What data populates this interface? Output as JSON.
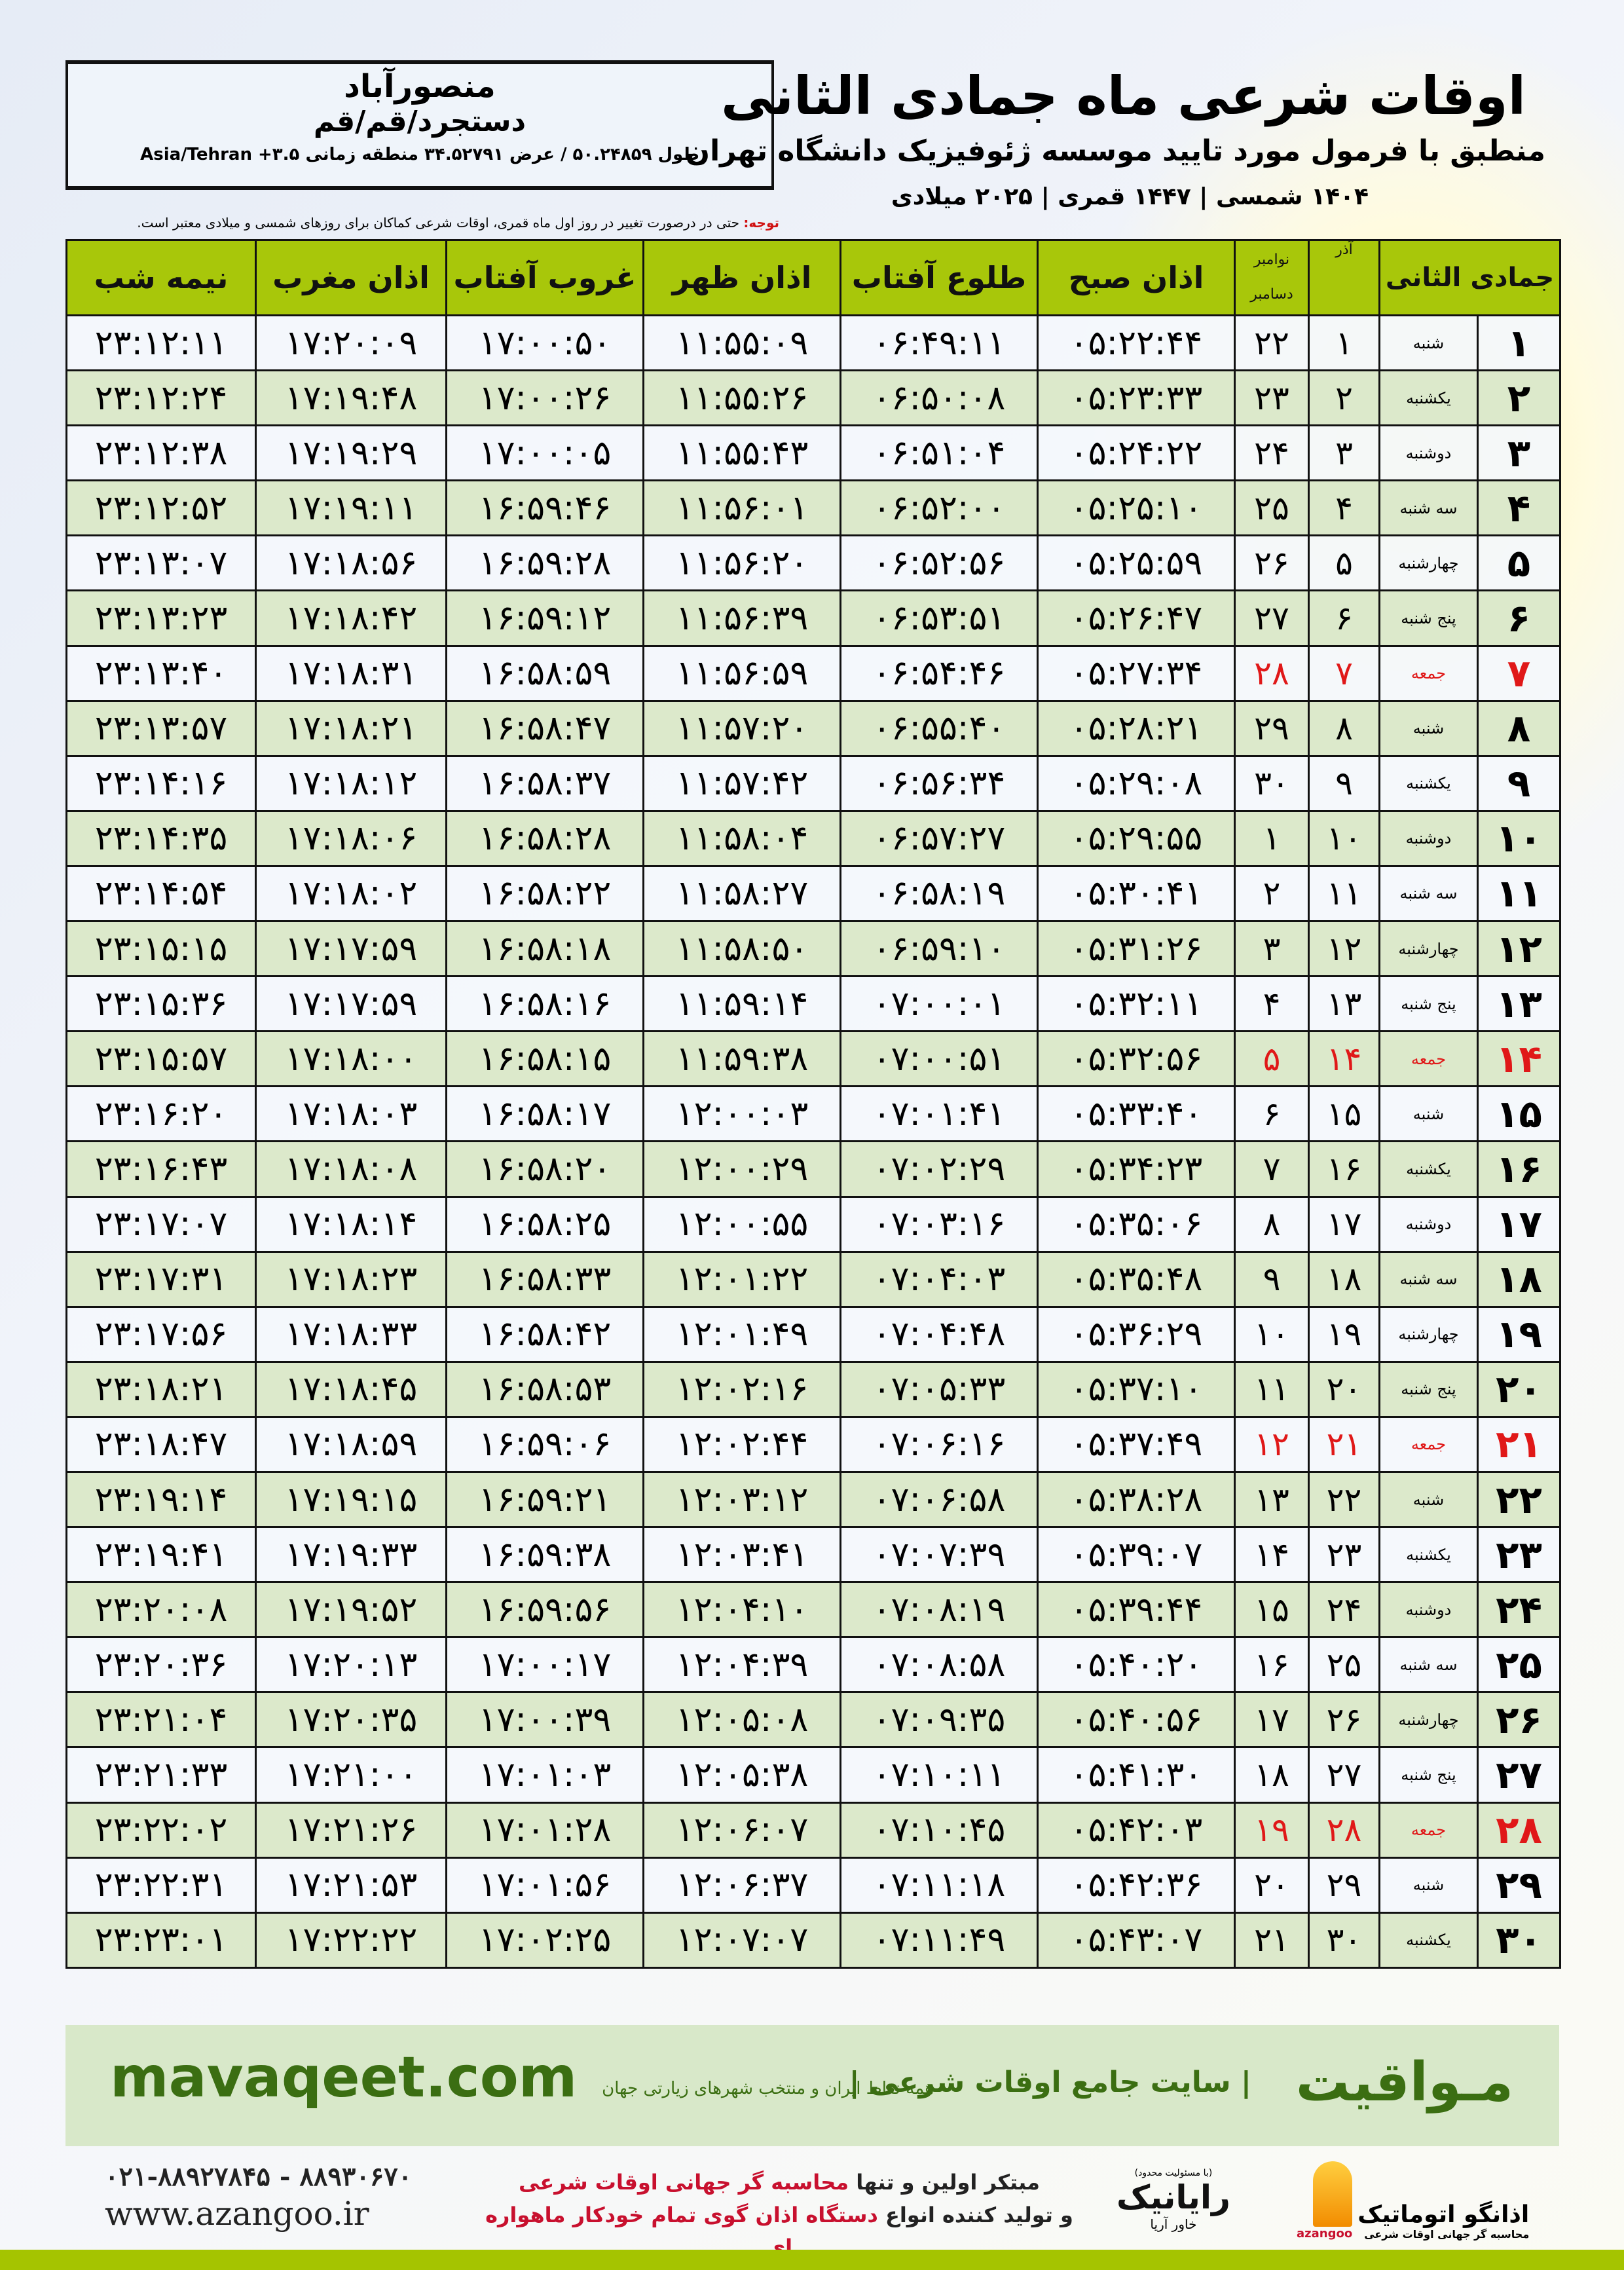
{
  "location": {
    "city": "منصورآباد",
    "province": "دستجرد/قم/قم",
    "coords": "طول ۵۰.۲۴۸۵۹ / عرض ۳۴.۵۲۷۹۱ منطقه زمانی ۳.۵+ Asia/Tehran"
  },
  "header": {
    "title": "اوقات شرعی ماه جمادی الثانی",
    "subtitle": "منطبق با فرمول مورد تایید موسسه ژئوفیزیک دانشگاه تهران",
    "years": "۱۴۰۴ شمسی | ۱۴۴۷ قمری | ۲۰۲۵ میلادی"
  },
  "note": {
    "label": "توجه:",
    "text": " حتی در درصورت تغییر در روز اول ماه قمری، اوقات شرعی کماکان برای روزهای شمسی و میلادی معتبر است."
  },
  "table": {
    "headers": {
      "hijri": "جمادی الثانی",
      "azar": "آذر",
      "greg1": "نوامبر",
      "greg2": "دسامبر",
      "fajr": "اذان صبح",
      "sunrise": "طلوع آفتاب",
      "dhuhr": "اذان ظهر",
      "sunset": "غروب آفتاب",
      "maghrib": "اذان مغرب",
      "midnight": "نیمه شب"
    },
    "holiday_color": "#e01818",
    "header_color": "#a8c70a",
    "alt_row_color": "#dce9cb",
    "rows": [
      {
        "n": "۱",
        "wd": "شنبه",
        "azar": "۱",
        "greg": "۲۲",
        "t": [
          "۰۵:۲۲:۴۴",
          "۰۶:۴۹:۱۱",
          "۱۱:۵۵:۰۹",
          "۱۷:۰۰:۵۰",
          "۱۷:۲۰:۰۹",
          "۲۳:۱۲:۱۱"
        ]
      },
      {
        "n": "۲",
        "wd": "یکشنبه",
        "azar": "۲",
        "greg": "۲۳",
        "t": [
          "۰۵:۲۳:۳۳",
          "۰۶:۵۰:۰۸",
          "۱۱:۵۵:۲۶",
          "۱۷:۰۰:۲۶",
          "۱۷:۱۹:۴۸",
          "۲۳:۱۲:۲۴"
        ]
      },
      {
        "n": "۳",
        "wd": "دوشنبه",
        "azar": "۳",
        "greg": "۲۴",
        "t": [
          "۰۵:۲۴:۲۲",
          "۰۶:۵۱:۰۴",
          "۱۱:۵۵:۴۳",
          "۱۷:۰۰:۰۵",
          "۱۷:۱۹:۲۹",
          "۲۳:۱۲:۳۸"
        ]
      },
      {
        "n": "۴",
        "wd": "سه شنبه",
        "azar": "۴",
        "greg": "۲۵",
        "t": [
          "۰۵:۲۵:۱۰",
          "۰۶:۵۲:۰۰",
          "۱۱:۵۶:۰۱",
          "۱۶:۵۹:۴۶",
          "۱۷:۱۹:۱۱",
          "۲۳:۱۲:۵۲"
        ]
      },
      {
        "n": "۵",
        "wd": "چهارشنبه",
        "azar": "۵",
        "greg": "۲۶",
        "t": [
          "۰۵:۲۵:۵۹",
          "۰۶:۵۲:۵۶",
          "۱۱:۵۶:۲۰",
          "۱۶:۵۹:۲۸",
          "۱۷:۱۸:۵۶",
          "۲۳:۱۳:۰۷"
        ]
      },
      {
        "n": "۶",
        "wd": "پنج شنبه",
        "azar": "۶",
        "greg": "۲۷",
        "t": [
          "۰۵:۲۶:۴۷",
          "۰۶:۵۳:۵۱",
          "۱۱:۵۶:۳۹",
          "۱۶:۵۹:۱۲",
          "۱۷:۱۸:۴۲",
          "۲۳:۱۳:۲۳"
        ]
      },
      {
        "n": "۷",
        "wd": "جمعه",
        "azar": "۷",
        "greg": "۲۸",
        "holiday": true,
        "t": [
          "۰۵:۲۷:۳۴",
          "۰۶:۵۴:۴۶",
          "۱۱:۵۶:۵۹",
          "۱۶:۵۸:۵۹",
          "۱۷:۱۸:۳۱",
          "۲۳:۱۳:۴۰"
        ]
      },
      {
        "n": "۸",
        "wd": "شنبه",
        "azar": "۸",
        "greg": "۲۹",
        "t": [
          "۰۵:۲۸:۲۱",
          "۰۶:۵۵:۴۰",
          "۱۱:۵۷:۲۰",
          "۱۶:۵۸:۴۷",
          "۱۷:۱۸:۲۱",
          "۲۳:۱۳:۵۷"
        ]
      },
      {
        "n": "۹",
        "wd": "یکشنبه",
        "azar": "۹",
        "greg": "۳۰",
        "t": [
          "۰۵:۲۹:۰۸",
          "۰۶:۵۶:۳۴",
          "۱۱:۵۷:۴۲",
          "۱۶:۵۸:۳۷",
          "۱۷:۱۸:۱۲",
          "۲۳:۱۴:۱۶"
        ]
      },
      {
        "n": "۱۰",
        "wd": "دوشنبه",
        "azar": "۱۰",
        "greg": "۱",
        "t": [
          "۰۵:۲۹:۵۵",
          "۰۶:۵۷:۲۷",
          "۱۱:۵۸:۰۴",
          "۱۶:۵۸:۲۸",
          "۱۷:۱۸:۰۶",
          "۲۳:۱۴:۳۵"
        ]
      },
      {
        "n": "۱۱",
        "wd": "سه شنبه",
        "azar": "۱۱",
        "greg": "۲",
        "t": [
          "۰۵:۳۰:۴۱",
          "۰۶:۵۸:۱۹",
          "۱۱:۵۸:۲۷",
          "۱۶:۵۸:۲۲",
          "۱۷:۱۸:۰۲",
          "۲۳:۱۴:۵۴"
        ]
      },
      {
        "n": "۱۲",
        "wd": "چهارشنبه",
        "azar": "۱۲",
        "greg": "۳",
        "t": [
          "۰۵:۳۱:۲۶",
          "۰۶:۵۹:۱۰",
          "۱۱:۵۸:۵۰",
          "۱۶:۵۸:۱۸",
          "۱۷:۱۷:۵۹",
          "۲۳:۱۵:۱۵"
        ]
      },
      {
        "n": "۱۳",
        "wd": "پنج شنبه",
        "azar": "۱۳",
        "greg": "۴",
        "t": [
          "۰۵:۳۲:۱۱",
          "۰۷:۰۰:۰۱",
          "۱۱:۵۹:۱۴",
          "۱۶:۵۸:۱۶",
          "۱۷:۱۷:۵۹",
          "۲۳:۱۵:۳۶"
        ]
      },
      {
        "n": "۱۴",
        "wd": "جمعه",
        "azar": "۱۴",
        "greg": "۵",
        "holiday": true,
        "t": [
          "۰۵:۳۲:۵۶",
          "۰۷:۰۰:۵۱",
          "۱۱:۵۹:۳۸",
          "۱۶:۵۸:۱۵",
          "۱۷:۱۸:۰۰",
          "۲۳:۱۵:۵۷"
        ]
      },
      {
        "n": "۱۵",
        "wd": "شنبه",
        "azar": "۱۵",
        "greg": "۶",
        "t": [
          "۰۵:۳۳:۴۰",
          "۰۷:۰۱:۴۱",
          "۱۲:۰۰:۰۳",
          "۱۶:۵۸:۱۷",
          "۱۷:۱۸:۰۳",
          "۲۳:۱۶:۲۰"
        ]
      },
      {
        "n": "۱۶",
        "wd": "یکشنبه",
        "azar": "۱۶",
        "greg": "۷",
        "t": [
          "۰۵:۳۴:۲۳",
          "۰۷:۰۲:۲۹",
          "۱۲:۰۰:۲۹",
          "۱۶:۵۸:۲۰",
          "۱۷:۱۸:۰۸",
          "۲۳:۱۶:۴۳"
        ]
      },
      {
        "n": "۱۷",
        "wd": "دوشنبه",
        "azar": "۱۷",
        "greg": "۸",
        "t": [
          "۰۵:۳۵:۰۶",
          "۰۷:۰۳:۱۶",
          "۱۲:۰۰:۵۵",
          "۱۶:۵۸:۲۵",
          "۱۷:۱۸:۱۴",
          "۲۳:۱۷:۰۷"
        ]
      },
      {
        "n": "۱۸",
        "wd": "سه شنبه",
        "azar": "۱۸",
        "greg": "۹",
        "t": [
          "۰۵:۳۵:۴۸",
          "۰۷:۰۴:۰۳",
          "۱۲:۰۱:۲۲",
          "۱۶:۵۸:۳۳",
          "۱۷:۱۸:۲۳",
          "۲۳:۱۷:۳۱"
        ]
      },
      {
        "n": "۱۹",
        "wd": "چهارشنبه",
        "azar": "۱۹",
        "greg": "۱۰",
        "t": [
          "۰۵:۳۶:۲۹",
          "۰۷:۰۴:۴۸",
          "۱۲:۰۱:۴۹",
          "۱۶:۵۸:۴۲",
          "۱۷:۱۸:۳۳",
          "۲۳:۱۷:۵۶"
        ]
      },
      {
        "n": "۲۰",
        "wd": "پنج شنبه",
        "azar": "۲۰",
        "greg": "۱۱",
        "t": [
          "۰۵:۳۷:۱۰",
          "۰۷:۰۵:۳۳",
          "۱۲:۰۲:۱۶",
          "۱۶:۵۸:۵۳",
          "۱۷:۱۸:۴۵",
          "۲۳:۱۸:۲۱"
        ]
      },
      {
        "n": "۲۱",
        "wd": "جمعه",
        "azar": "۲۱",
        "greg": "۱۲",
        "holiday": true,
        "t": [
          "۰۵:۳۷:۴۹",
          "۰۷:۰۶:۱۶",
          "۱۲:۰۲:۴۴",
          "۱۶:۵۹:۰۶",
          "۱۷:۱۸:۵۹",
          "۲۳:۱۸:۴۷"
        ]
      },
      {
        "n": "۲۲",
        "wd": "شنبه",
        "azar": "۲۲",
        "greg": "۱۳",
        "t": [
          "۰۵:۳۸:۲۸",
          "۰۷:۰۶:۵۸",
          "۱۲:۰۳:۱۲",
          "۱۶:۵۹:۲۱",
          "۱۷:۱۹:۱۵",
          "۲۳:۱۹:۱۴"
        ]
      },
      {
        "n": "۲۳",
        "wd": "یکشنبه",
        "azar": "۲۳",
        "greg": "۱۴",
        "t": [
          "۰۵:۳۹:۰۷",
          "۰۷:۰۷:۳۹",
          "۱۲:۰۳:۴۱",
          "۱۶:۵۹:۳۸",
          "۱۷:۱۹:۳۳",
          "۲۳:۱۹:۴۱"
        ]
      },
      {
        "n": "۲۴",
        "wd": "دوشنبه",
        "azar": "۲۴",
        "greg": "۱۵",
        "t": [
          "۰۵:۳۹:۴۴",
          "۰۷:۰۸:۱۹",
          "۱۲:۰۴:۱۰",
          "۱۶:۵۹:۵۶",
          "۱۷:۱۹:۵۲",
          "۲۳:۲۰:۰۸"
        ]
      },
      {
        "n": "۲۵",
        "wd": "سه شنبه",
        "azar": "۲۵",
        "greg": "۱۶",
        "t": [
          "۰۵:۴۰:۲۰",
          "۰۷:۰۸:۵۸",
          "۱۲:۰۴:۳۹",
          "۱۷:۰۰:۱۷",
          "۱۷:۲۰:۱۳",
          "۲۳:۲۰:۳۶"
        ]
      },
      {
        "n": "۲۶",
        "wd": "چهارشنبه",
        "azar": "۲۶",
        "greg": "۱۷",
        "t": [
          "۰۵:۴۰:۵۶",
          "۰۷:۰۹:۳۵",
          "۱۲:۰۵:۰۸",
          "۱۷:۰۰:۳۹",
          "۱۷:۲۰:۳۵",
          "۲۳:۲۱:۰۴"
        ]
      },
      {
        "n": "۲۷",
        "wd": "پنج شنبه",
        "azar": "۲۷",
        "greg": "۱۸",
        "t": [
          "۰۵:۴۱:۳۰",
          "۰۷:۱۰:۱۱",
          "۱۲:۰۵:۳۸",
          "۱۷:۰۱:۰۳",
          "۱۷:۲۱:۰۰",
          "۲۳:۲۱:۳۳"
        ]
      },
      {
        "n": "۲۸",
        "wd": "جمعه",
        "azar": "۲۸",
        "greg": "۱۹",
        "holiday": true,
        "t": [
          "۰۵:۴۲:۰۳",
          "۰۷:۱۰:۴۵",
          "۱۲:۰۶:۰۷",
          "۱۷:۰۱:۲۸",
          "۱۷:۲۱:۲۶",
          "۲۳:۲۲:۰۲"
        ]
      },
      {
        "n": "۲۹",
        "wd": "شنبه",
        "azar": "۲۹",
        "greg": "۲۰",
        "t": [
          "۰۵:۴۲:۳۶",
          "۰۷:۱۱:۱۸",
          "۱۲:۰۶:۳۷",
          "۱۷:۰۱:۵۶",
          "۱۷:۲۱:۵۳",
          "۲۳:۲۲:۳۱"
        ]
      },
      {
        "n": "۳۰",
        "wd": "یکشنبه",
        "azar": "۳۰",
        "greg": "۲۱",
        "t": [
          "۰۵:۴۳:۰۷",
          "۰۷:۱۱:۴۹",
          "۱۲:۰۷:۰۷",
          "۱۷:۰۲:۲۵",
          "۱۷:۲۲:۲۲",
          "۲۳:۲۳:۰۱"
        ]
      }
    ]
  },
  "footer": {
    "brand": "مـواقیت",
    "tagline": "| سایت جامع اوقات شرعی |",
    "tagline2": "همه نقاط ایران و منتخب شهرهای زیارتی جهان",
    "site": "mavaqeet.com",
    "brand_color": "#3b6e12",
    "banner_color": "#d8e8c9"
  },
  "contact": {
    "phone": "۰۲۱-۸۸۹۲۷۸۴۵ - ۸۸۹۳۰۶۷۰",
    "web": "www.azangoo.ir"
  },
  "slogan": {
    "l1a": "مبتکر اولین و تنها ",
    "l1b": "محاسبه گر جهانی اوقات شرعی",
    "l2a": "و تولید کننده انواع ",
    "l2b": "دستگاه اذان گوی تمام خودکار ماهواره ای"
  },
  "logos": {
    "rayanik_note": "(با مسئولیت محدود)",
    "rayanik_a": "رایانیک",
    "rayanik_b": "خاور آریا",
    "azangoo": "اذانگو اتوماتیک",
    "azangoo_sub": "محاسبه گر جهانی اوقات شرعی",
    "azangoo_en": "azangoo"
  }
}
